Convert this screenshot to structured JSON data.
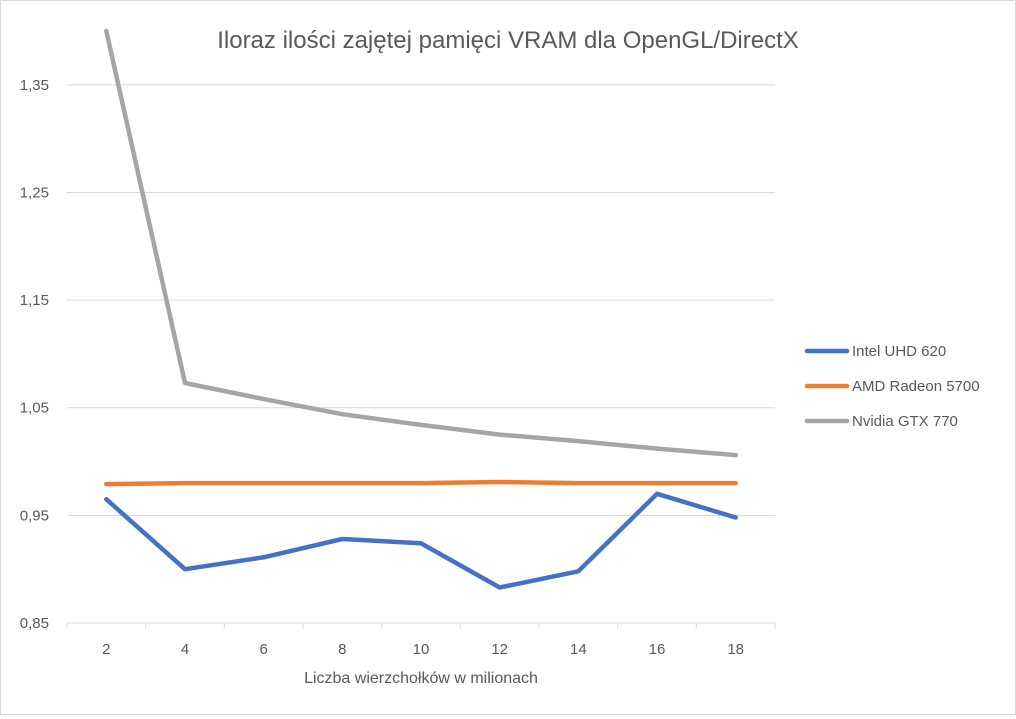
{
  "chart_data": {
    "type": "line",
    "title": "Iloraz ilości zajętej pamięci VRAM dla OpenGL/DirectX",
    "xlabel": "Liczba wierzchołków w milionach",
    "ylabel": "",
    "categories": [
      "2",
      "4",
      "6",
      "8",
      "10",
      "12",
      "14",
      "16",
      "18"
    ],
    "ylim": [
      0.85,
      1.4
    ],
    "yticks": [
      "0,85",
      "0,95",
      "1,05",
      "1,15",
      "1,25",
      "1,35"
    ],
    "ytick_values": [
      0.85,
      0.95,
      1.05,
      1.15,
      1.25,
      1.35
    ],
    "grid": true,
    "legend_position": "right",
    "series": [
      {
        "name": "Intel UHD 620",
        "color": "#4472C4",
        "values": [
          0.965,
          0.9,
          0.911,
          0.928,
          0.924,
          0.883,
          0.898,
          0.97,
          0.948
        ]
      },
      {
        "name": "AMD Radeon 5700",
        "color": "#ED7D31",
        "values": [
          0.979,
          0.98,
          0.98,
          0.98,
          0.98,
          0.981,
          0.98,
          0.98,
          0.98
        ]
      },
      {
        "name": "Nvidia GTX 770",
        "color": "#A5A5A5",
        "values": [
          1.4,
          1.073,
          1.058,
          1.044,
          1.034,
          1.025,
          1.019,
          1.012,
          1.006
        ]
      }
    ]
  }
}
